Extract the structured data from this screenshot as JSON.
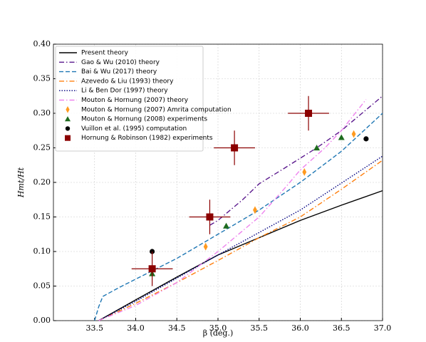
{
  "chart_data": {
    "type": "line",
    "xlabel": "β (deg.)",
    "ylabel": "Hmt/Ht",
    "xlim": [
      33.0,
      37.0
    ],
    "ylim": [
      0,
      0.4
    ],
    "xticks": [
      33.5,
      {
        "value": 34,
        "label": "34.0"
      },
      34.5,
      {
        "value": 35,
        "label": "35.0"
      },
      35.5,
      {
        "value": 36,
        "label": "36.0"
      },
      36.5,
      {
        "value": 37,
        "label": "37.0"
      }
    ],
    "yticks": [
      {
        "value": 0,
        "label": "0.00"
      },
      0.05,
      {
        "value": 0.1,
        "label": "0.10"
      },
      0.15,
      {
        "value": 0.2,
        "label": "0.20"
      },
      0.25,
      {
        "value": 0.3,
        "label": "0.30"
      },
      0.35,
      {
        "value": 0.4,
        "label": "0.40"
      }
    ],
    "grid": true,
    "legend": "upper left",
    "series": [
      {
        "name": "Present theory",
        "color": "#000000",
        "style": "solid",
        "x": [
          33.55,
          34.0,
          34.5,
          35.0,
          35.5,
          36.0,
          36.5,
          37.0
        ],
        "values": [
          0.0,
          0.03,
          0.063,
          0.095,
          0.12,
          0.145,
          0.167,
          0.188
        ]
      },
      {
        "name": "Gao & Wu (2010) theory",
        "color": "#5b1a8e",
        "style": "dashdot",
        "x": [
          34.9,
          35.0,
          35.3,
          35.5,
          35.8,
          36.0,
          36.2,
          36.5,
          36.8,
          37.0
        ],
        "values": [
          0.138,
          0.145,
          0.175,
          0.198,
          0.22,
          0.235,
          0.25,
          0.275,
          0.305,
          0.325
        ]
      },
      {
        "name": "Bai & Wu (2017) theory",
        "color": "#1f77b4",
        "style": "dashed",
        "x": [
          33.5,
          33.55,
          33.6,
          33.8,
          34.0,
          34.5,
          35.0,
          35.5,
          36.0,
          36.5,
          37.0
        ],
        "values": [
          0.0,
          0.02,
          0.035,
          0.048,
          0.06,
          0.09,
          0.125,
          0.16,
          0.2,
          0.245,
          0.3
        ]
      },
      {
        "name": "Azevedo & Liu (1993) theory",
        "color": "#ff7f0e",
        "style": "dashdot",
        "x": [
          33.55,
          34.0,
          34.5,
          35.0,
          35.5,
          36.0,
          36.5,
          37.0
        ],
        "values": [
          0.0,
          0.025,
          0.055,
          0.087,
          0.12,
          0.15,
          0.19,
          0.232
        ]
      },
      {
        "name": "Li & Ben Dor (1997) theory",
        "color": "#000080",
        "style": "dotted",
        "x": [
          33.55,
          34.0,
          35.0,
          36.0,
          37.0
        ],
        "values": [
          0.0,
          0.028,
          0.095,
          0.16,
          0.238
        ]
      },
      {
        "name": "Mouton & Hornung (2007) theory",
        "color": "#ee82ee",
        "style": "dashdot",
        "x": [
          33.55,
          34.0,
          34.5,
          35.0,
          35.5,
          35.8,
          36.0,
          36.3,
          36.5,
          36.8
        ],
        "values": [
          0.0,
          0.022,
          0.055,
          0.1,
          0.15,
          0.19,
          0.218,
          0.25,
          0.275,
          0.32
        ]
      },
      {
        "name": "Mouton & Hornung (2007) Amrita computation",
        "color": "#ff9a1f",
        "marker": "diamond",
        "x": [
          34.85,
          35.45,
          36.05,
          36.65
        ],
        "values": [
          0.107,
          0.16,
          0.215,
          0.27
        ]
      },
      {
        "name": "Mouton & Hornung (2008) experiments",
        "color": "#1e6b1e",
        "marker": "triangle",
        "x": [
          34.2,
          35.1,
          36.2,
          36.5
        ],
        "values": [
          0.068,
          0.137,
          0.25,
          0.265
        ]
      },
      {
        "name": "Vuillon et al. (1995) computation",
        "color": "#000000",
        "marker": "circle",
        "x": [
          34.2,
          36.8
        ],
        "values": [
          0.1,
          0.263
        ]
      },
      {
        "name": "Hornung & Robinson (1982) experiments",
        "color": "#8b0000",
        "marker": "square",
        "x": [
          34.2,
          34.9,
          35.2,
          36.1
        ],
        "values": [
          0.075,
          0.15,
          0.25,
          0.3
        ],
        "xerr": [
          0.25,
          0.25,
          0.25,
          0.25
        ],
        "yerr": [
          0.025,
          0.025,
          0.025,
          0.025
        ]
      }
    ]
  }
}
